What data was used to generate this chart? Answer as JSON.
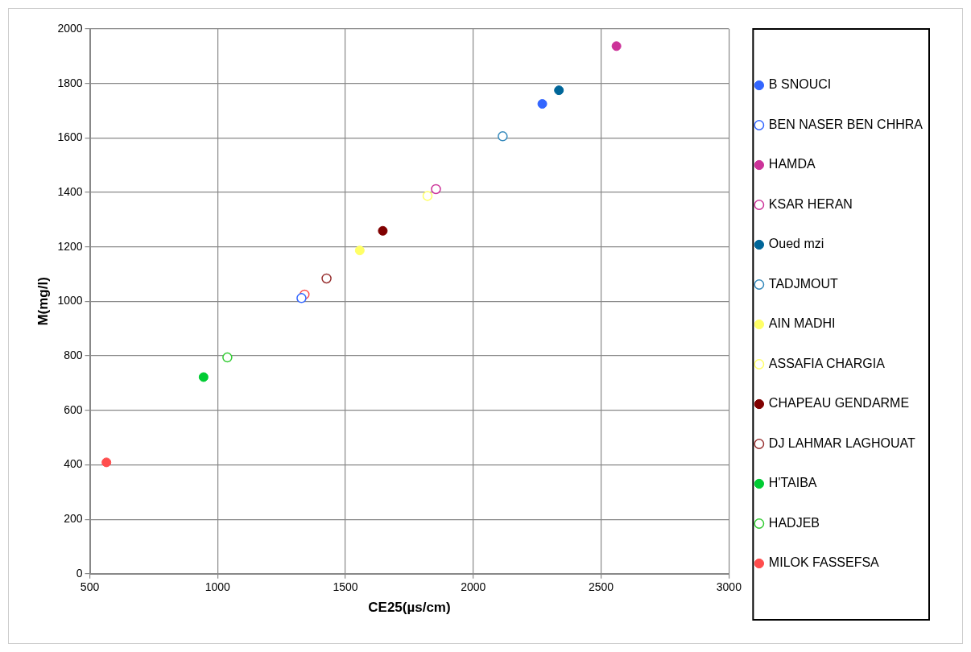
{
  "chart_data": {
    "type": "scatter",
    "xlabel": "CE25(µs/cm)",
    "ylabel": "M(mg/l)",
    "xlim": [
      500,
      3000
    ],
    "xticks": [
      500,
      1000,
      1500,
      2000,
      2500,
      3000
    ],
    "ylim": [
      0,
      2000
    ],
    "yticks": [
      0,
      200,
      400,
      600,
      800,
      1000,
      1200,
      1400,
      1600,
      1800,
      2000
    ],
    "grid": true,
    "legend": "right",
    "marker": "circle",
    "series": [
      {
        "name": "B SNOUCI",
        "color": "#3366ff",
        "x": [
          2270
        ],
        "values": [
          1725
        ]
      },
      {
        "name": "BEN NASER BEN CHHRA",
        "color": "#3366ff",
        "marker": "circle-open",
        "x": [
          1328
        ],
        "values": [
          1012
        ]
      },
      {
        "name": "HAMDA",
        "color": "#cc3399",
        "x": [
          2560
        ],
        "values": [
          1937
        ]
      },
      {
        "name": "KSAR HERAN",
        "color": "#cc3399",
        "marker": "circle-open",
        "x": [
          1854
        ],
        "values": [
          1412
        ]
      },
      {
        "name": "Oued mzi",
        "color": "#006699",
        "x": [
          2335
        ],
        "values": [
          1775
        ]
      },
      {
        "name": "TADJMOUT",
        "color": "#3388bb",
        "marker": "circle-open",
        "x": [
          2115
        ],
        "values": [
          1606
        ]
      },
      {
        "name": "AIN MADHI",
        "color": "#ffff66",
        "x": [
          1556
        ],
        "values": [
          1187
        ]
      },
      {
        "name": "ASSAFIA CHARGIA",
        "color": "#ffff66",
        "marker": "circle-open",
        "x": [
          1821
        ],
        "values": [
          1387
        ]
      },
      {
        "name": "CHAPEAU GENDARME",
        "color": "#800000",
        "x": [
          1646
        ],
        "values": [
          1259
        ]
      },
      {
        "name": "DJ LAHMAR LAGHOUAT",
        "color": "#993333",
        "marker": "circle-open",
        "x": [
          1426
        ],
        "values": [
          1084
        ]
      },
      {
        "name": "H'TAIBA",
        "color": "#00cc33",
        "x": [
          945
        ],
        "values": [
          722
        ]
      },
      {
        "name": "HADJEB",
        "color": "#33cc33",
        "marker": "circle-open",
        "x": [
          1038
        ],
        "values": [
          794
        ]
      },
      {
        "name": "MILOK FASSEFSA",
        "color": "#ff4d4d",
        "x": [
          565
        ],
        "values": [
          409
        ]
      },
      {
        "color": "#ff4d4d",
        "marker": "circle-open",
        "x": [
          1340
        ],
        "values": [
          1025
        ]
      }
    ]
  }
}
